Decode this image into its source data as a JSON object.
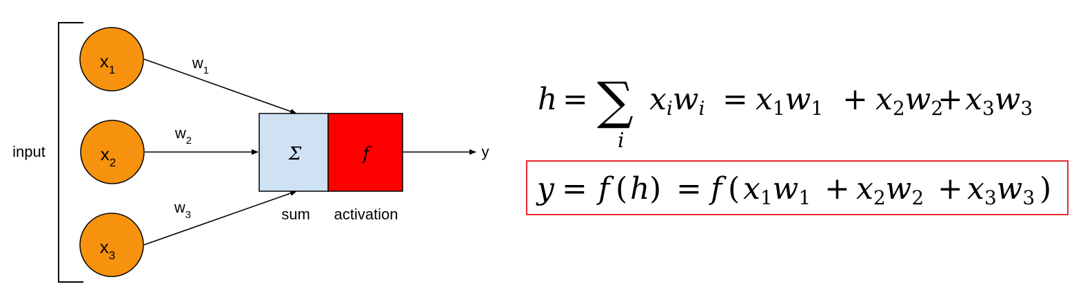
{
  "diagram": {
    "input_label": "input",
    "inputs": [
      {
        "var": "x",
        "sub": "1",
        "weight_var": "w",
        "weight_sub": "1"
      },
      {
        "var": "x",
        "sub": "2",
        "weight_var": "w",
        "weight_sub": "2"
      },
      {
        "var": "x",
        "sub": "3",
        "weight_var": "w",
        "weight_sub": "3"
      }
    ],
    "sum_symbol": "Σ",
    "activation_symbol": "f",
    "sum_label": "sum",
    "activation_label": "activation",
    "output_label": "y",
    "colors": {
      "input_node": "#f7920e",
      "sum_box": "#cfe2f3",
      "activation_box": "#ff0000",
      "highlight_border": "#e8262c"
    }
  },
  "equations": {
    "eq1": {
      "lhs": "h",
      "eq": "=",
      "sigma": "∑",
      "sigma_index": "i",
      "sum_term": [
        {
          "v": "x",
          "s": "i"
        },
        {
          "v": "w",
          "s": "i"
        }
      ],
      "eq2": "=",
      "terms": [
        [
          {
            "v": "x",
            "s": "1"
          },
          {
            "v": "w",
            "s": "1"
          }
        ],
        [
          {
            "v": "x",
            "s": "2"
          },
          {
            "v": "w",
            "s": "2"
          }
        ],
        [
          {
            "v": "x",
            "s": "3"
          },
          {
            "v": "w",
            "s": "3"
          }
        ]
      ],
      "plus": "+"
    },
    "eq2": {
      "lhs": "y",
      "eq": "=",
      "f": "f",
      "open": "(",
      "h": "h",
      "close": ")",
      "eq2": "=",
      "terms": [
        [
          {
            "v": "x",
            "s": "1"
          },
          {
            "v": "w",
            "s": "1"
          }
        ],
        [
          {
            "v": "x",
            "s": "2"
          },
          {
            "v": "w",
            "s": "2"
          }
        ],
        [
          {
            "v": "x",
            "s": "3"
          },
          {
            "v": "w",
            "s": "3"
          }
        ]
      ],
      "plus": "+"
    }
  }
}
